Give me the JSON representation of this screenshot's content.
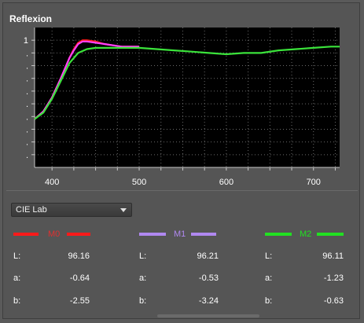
{
  "panel_title": "Reflexion",
  "chart_data": {
    "type": "line",
    "title": "",
    "xlabel": "",
    "ylabel": "",
    "xlim": [
      380,
      730
    ],
    "ylim": [
      0,
      1.1
    ],
    "x_ticks": [
      400,
      500,
      600,
      700
    ],
    "x_tick_labels": [
      "400",
      "500",
      "600",
      "700"
    ],
    "y_ticks": [
      0.1,
      0.2,
      0.3,
      0.4,
      0.5,
      0.6,
      0.7,
      0.8,
      0.9,
      1.0
    ],
    "y_tick_labels": [
      ".",
      ".",
      ".",
      ".",
      ".",
      ".",
      ".",
      ".",
      ".",
      "1"
    ],
    "grid": true,
    "series": [
      {
        "color": "#ff1a1a",
        "x": [
          380,
          390,
          400,
          410,
          420,
          425,
          430,
          435,
          440,
          450,
          460,
          470,
          480,
          490,
          500
        ],
        "y": [
          0.38,
          0.44,
          0.55,
          0.7,
          0.86,
          0.93,
          0.98,
          1.0,
          1.0,
          0.99,
          0.97,
          0.96,
          0.95,
          0.95,
          0.95
        ]
      },
      {
        "color": "#ff40ff",
        "x": [
          380,
          390,
          400,
          410,
          420,
          425,
          430,
          435,
          440,
          450,
          460,
          470,
          480,
          490,
          500
        ],
        "y": [
          0.38,
          0.44,
          0.55,
          0.7,
          0.86,
          0.92,
          0.97,
          0.99,
          0.99,
          0.98,
          0.97,
          0.96,
          0.95,
          0.95,
          0.95
        ]
      },
      {
        "color": "#3be33b",
        "x": [
          380,
          390,
          400,
          410,
          420,
          430,
          440,
          450,
          460,
          480,
          500,
          520,
          540,
          560,
          580,
          600,
          620,
          640,
          660,
          680,
          700,
          720,
          730
        ],
        "y": [
          0.38,
          0.43,
          0.54,
          0.68,
          0.82,
          0.9,
          0.93,
          0.94,
          0.94,
          0.94,
          0.94,
          0.93,
          0.92,
          0.91,
          0.9,
          0.89,
          0.9,
          0.9,
          0.92,
          0.93,
          0.94,
          0.95,
          0.95
        ]
      }
    ]
  },
  "color_space": {
    "selected": "CIE Lab"
  },
  "colors": {
    "m0": "#ff1a1a",
    "m1": "#b088f0",
    "m2": "#22e022",
    "m0_label": "#e03030",
    "m1_label": "#b088f0",
    "m2_label": "#22e022"
  },
  "measurements": [
    {
      "name": "M0",
      "L_label": "L:",
      "a_label": "a:",
      "b_label": "b:",
      "L": "96.16",
      "a": "-0.64",
      "b": "-2.55"
    },
    {
      "name": "M1",
      "L_label": "L:",
      "a_label": "a:",
      "b_label": "b:",
      "L": "96.21",
      "a": "-0.53",
      "b": "-3.24"
    },
    {
      "name": "M2",
      "L_label": "L:",
      "a_label": "a:",
      "b_label": "b:",
      "L": "96.11",
      "a": "-1.23",
      "b": "-0.63"
    }
  ]
}
